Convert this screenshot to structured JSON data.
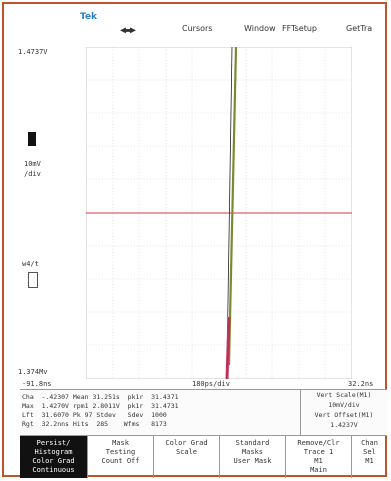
{
  "topbar": {
    "logo": "Tek",
    "items": [
      "Cursors",
      "Window",
      "FFTsetup",
      "GetTra"
    ]
  },
  "left_panel": {
    "top_value": "1.4737V",
    "bottom_value": "1.374Mv",
    "scale_value": "10mV",
    "scale_unit": "/div",
    "ch_label": "w4/t"
  },
  "axis": {
    "left_time": "-91.8ns",
    "center_time": "180ps/div",
    "right_time": "32.2ns"
  },
  "measurements": [
    "Cha  -.42307 Mean 31.251s  pk1r  31.4371",
    "Max  1.4270V rpm1 2.8011V  pk1r  31.4731",
    "Lft  31.6070 Pk 97 Stdev   Sdev  1000",
    "Rgt  32.2nns Hits  285    Wfms   8173"
  ],
  "right_box": [
    "Vert Scale(M1)",
    "10mV/div",
    "Vert Offset(M1)",
    "1.4237V"
  ],
  "menu": [
    {
      "line1": "Persist/",
      "line2": "Histogram",
      "line3": "Color Grad",
      "line4": "Continuous"
    },
    {
      "line1": "Mask",
      "line2": "Testing",
      "line3": "Count Off",
      "line4": ""
    },
    {
      "line1": "Color Grad",
      "line2": "Scale",
      "line3": "",
      "line4": ""
    },
    {
      "line1": "Standard",
      "line2": "Masks",
      "line3": "User Mask",
      "line4": ""
    },
    {
      "line1": "Remove/Clr",
      "line2": "Trace 1",
      "line3": "M1",
      "line4": "Main"
    },
    {
      "line1": "Chan",
      "line2": "Sel",
      "line3": "M1",
      "line4": ""
    }
  ],
  "colors": {
    "border": "#c0532b",
    "trace": "#7a8a2e",
    "trace_bottom": "#c0305a",
    "crosshair": "#d23a4a"
  }
}
